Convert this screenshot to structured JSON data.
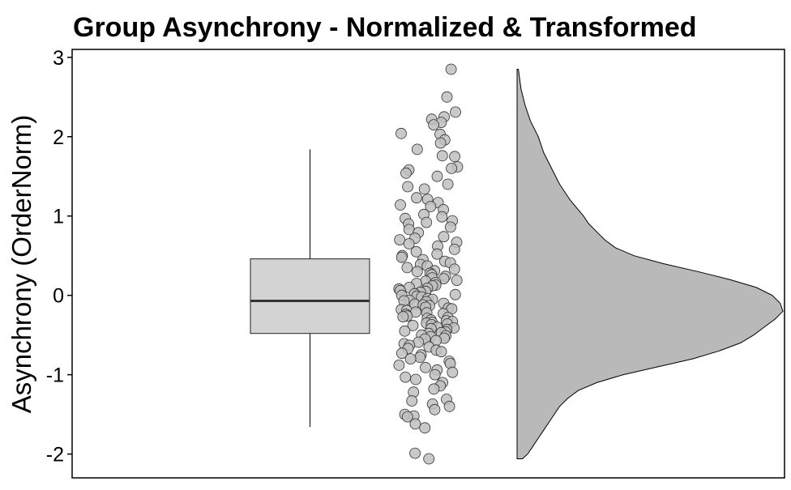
{
  "chart_data": {
    "type": "raincloud",
    "title": "Group Asynchrony - Normalized & Transformed",
    "xlabel": "",
    "ylabel": "Asynchrony (OrderNorm)",
    "ylim": [
      -2.3,
      3.1
    ],
    "yticks": [
      3,
      2,
      1,
      0,
      -1,
      -2
    ],
    "ytick_labels": [
      "3",
      "2",
      "1",
      "0",
      "-1",
      "-2"
    ],
    "grid": false,
    "legend": "none",
    "box": {
      "min": -1.66,
      "q1": -0.48,
      "median": -0.07,
      "q3": 0.46,
      "max": 1.84
    },
    "points": [
      2.85,
      2.5,
      2.31,
      2.25,
      2.22,
      2.18,
      2.15,
      2.04,
      2.03,
      1.96,
      1.92,
      1.84,
      1.76,
      1.75,
      1.62,
      1.6,
      1.58,
      1.54,
      1.5,
      1.4,
      1.37,
      1.34,
      1.23,
      1.21,
      1.17,
      1.14,
      1.12,
      1.08,
      1.02,
      0.99,
      0.97,
      0.94,
      0.92,
      0.9,
      0.86,
      0.83,
      0.79,
      0.74,
      0.72,
      0.7,
      0.67,
      0.65,
      0.62,
      0.58,
      0.55,
      0.52,
      0.5,
      0.48,
      0.45,
      0.43,
      0.41,
      0.39,
      0.37,
      0.35,
      0.33,
      0.31,
      0.3,
      0.28,
      0.26,
      0.24,
      0.22,
      0.21,
      0.19,
      0.18,
      0.16,
      0.15,
      0.13,
      0.12,
      0.1,
      0.09,
      0.08,
      0.06,
      0.05,
      0.04,
      0.02,
      0.01,
      0.0,
      -0.01,
      -0.02,
      -0.04,
      -0.05,
      -0.06,
      -0.07,
      -0.08,
      -0.1,
      -0.11,
      -0.12,
      -0.13,
      -0.15,
      -0.16,
      -0.17,
      -0.18,
      -0.19,
      -0.21,
      -0.22,
      -0.23,
      -0.24,
      -0.26,
      -0.27,
      -0.28,
      -0.29,
      -0.31,
      -0.32,
      -0.33,
      -0.34,
      -0.35,
      -0.36,
      -0.37,
      -0.38,
      -0.4,
      -0.41,
      -0.42,
      -0.43,
      -0.45,
      -0.46,
      -0.47,
      -0.48,
      -0.5,
      -0.51,
      -0.52,
      -0.54,
      -0.55,
      -0.57,
      -0.59,
      -0.61,
      -0.63,
      -0.65,
      -0.67,
      -0.69,
      -0.71,
      -0.73,
      -0.75,
      -0.78,
      -0.8,
      -0.83,
      -0.86,
      -0.88,
      -0.91,
      -0.94,
      -0.97,
      -1.0,
      -1.03,
      -1.06,
      -1.1,
      -1.14,
      -1.18,
      -1.22,
      -1.31,
      -1.33,
      -1.37,
      -1.4,
      -1.44,
      -1.5,
      -1.52,
      -1.53,
      -1.62,
      -1.67,
      -1.99,
      -2.06
    ],
    "density": [
      [
        -2.06,
        0.02
      ],
      [
        -2.0,
        0.04
      ],
      [
        -1.9,
        0.06
      ],
      [
        -1.8,
        0.08
      ],
      [
        -1.7,
        0.1
      ],
      [
        -1.6,
        0.12
      ],
      [
        -1.5,
        0.14
      ],
      [
        -1.4,
        0.16
      ],
      [
        -1.3,
        0.19
      ],
      [
        -1.2,
        0.23
      ],
      [
        -1.1,
        0.3
      ],
      [
        -1.0,
        0.4
      ],
      [
        -0.9,
        0.53
      ],
      [
        -0.8,
        0.66
      ],
      [
        -0.7,
        0.76
      ],
      [
        -0.6,
        0.84
      ],
      [
        -0.5,
        0.89
      ],
      [
        -0.4,
        0.93
      ],
      [
        -0.3,
        0.97
      ],
      [
        -0.2,
        1.0
      ],
      [
        -0.1,
        0.99
      ],
      [
        0.0,
        0.96
      ],
      [
        0.1,
        0.9
      ],
      [
        0.2,
        0.8
      ],
      [
        0.3,
        0.68
      ],
      [
        0.4,
        0.55
      ],
      [
        0.5,
        0.44
      ],
      [
        0.6,
        0.37
      ],
      [
        0.7,
        0.33
      ],
      [
        0.8,
        0.3
      ],
      [
        0.9,
        0.27
      ],
      [
        1.0,
        0.25
      ],
      [
        1.2,
        0.2
      ],
      [
        1.4,
        0.16
      ],
      [
        1.6,
        0.13
      ],
      [
        1.8,
        0.1
      ],
      [
        2.0,
        0.08
      ],
      [
        2.2,
        0.05
      ],
      [
        2.4,
        0.03
      ],
      [
        2.6,
        0.015
      ],
      [
        2.85,
        0.005
      ]
    ],
    "colors": {
      "box_fill": "#d3d3d3",
      "point_fill": "#c0c0c0",
      "violin_fill": "#b9b9b9",
      "stroke": "#000000",
      "median": "#333333"
    }
  }
}
